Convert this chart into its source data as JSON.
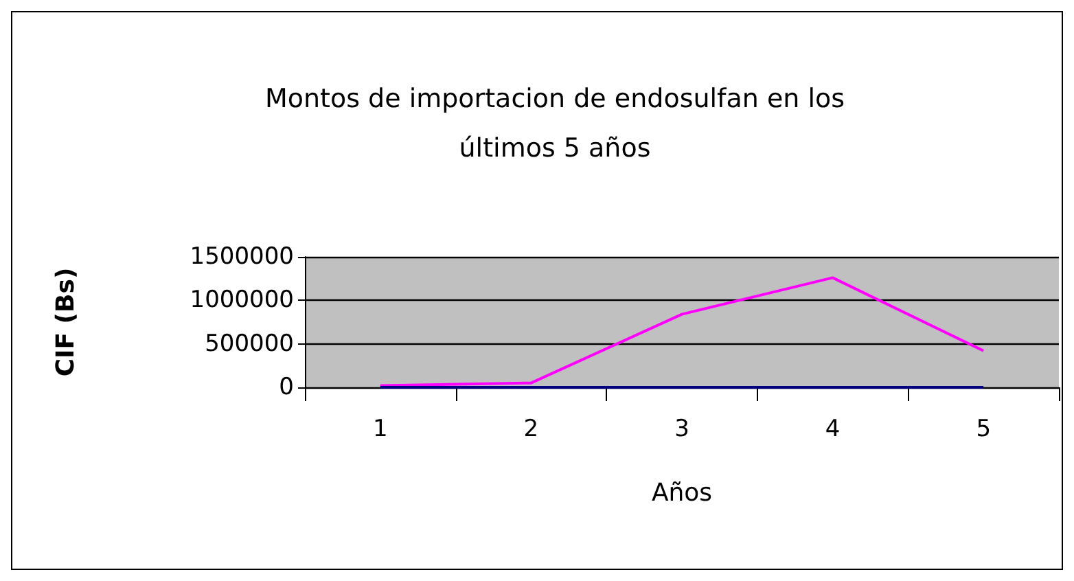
{
  "chart_data": {
    "type": "line",
    "title": "Montos de importacion de endosulfan en los\núltimos 5 años",
    "xlabel": "Años",
    "ylabel": "CIF (Bs)",
    "categories": [
      "1",
      "2",
      "3",
      "4",
      "5"
    ],
    "series": [
      {
        "color": "#ff00ff",
        "values": [
          20000,
          50000,
          840000,
          1260000,
          420000
        ]
      },
      {
        "color": "#000080",
        "values": [
          0,
          0,
          0,
          0,
          0
        ]
      }
    ],
    "ylim": [
      0,
      1500000
    ],
    "yticks": [
      0,
      500000,
      1000000,
      1500000
    ],
    "grid": "y",
    "marker": "none",
    "line_style": "solid"
  }
}
